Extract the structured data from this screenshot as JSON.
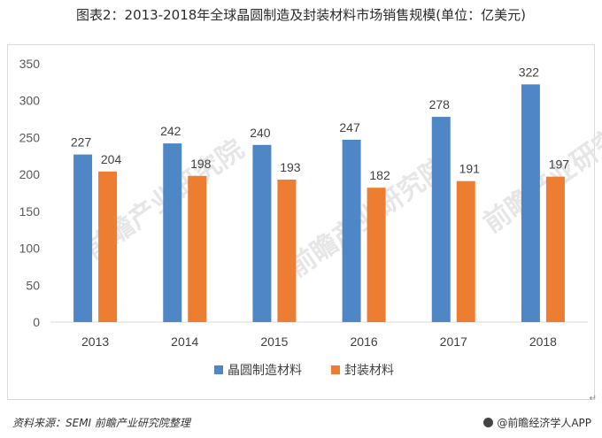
{
  "title": "图表2：2013-2018年全球晶圆制造及封装材料市场销售规模(单位：亿美元)",
  "source": "资料来源：SEMI 前瞻产业研究院整理",
  "brand": "@前瞻经济学人APP",
  "marker": "↵",
  "colors": {
    "series1": "#4f86c6",
    "series2": "#ed7d31"
  },
  "chart_data": {
    "type": "bar",
    "categories": [
      "2013",
      "2014",
      "2015",
      "2016",
      "2017",
      "2018"
    ],
    "series": [
      {
        "name": "晶圆制造材料",
        "values": [
          227,
          242,
          240,
          247,
          278,
          322
        ]
      },
      {
        "name": "封装材料",
        "values": [
          204,
          198,
          193,
          182,
          191,
          197
        ]
      }
    ],
    "ylim": [
      0,
      350
    ],
    "yticks": [
      0,
      50,
      100,
      150,
      200,
      250,
      300,
      350
    ],
    "grid": false,
    "legend": "bottom",
    "data_labels": true
  }
}
